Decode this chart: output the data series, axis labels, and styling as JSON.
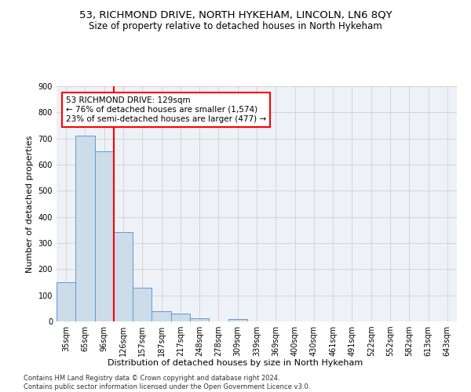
{
  "title": "53, RICHMOND DRIVE, NORTH HYKEHAM, LINCOLN, LN6 8QY",
  "subtitle": "Size of property relative to detached houses in North Hykeham",
  "xlabel": "Distribution of detached houses by size in North Hykeham",
  "ylabel": "Number of detached properties",
  "footer_line1": "Contains HM Land Registry data © Crown copyright and database right 2024.",
  "footer_line2": "Contains public sector information licensed under the Open Government Licence v3.0.",
  "categories": [
    "35sqm",
    "65sqm",
    "96sqm",
    "126sqm",
    "157sqm",
    "187sqm",
    "217sqm",
    "248sqm",
    "278sqm",
    "309sqm",
    "339sqm",
    "369sqm",
    "400sqm",
    "430sqm",
    "461sqm",
    "491sqm",
    "522sqm",
    "552sqm",
    "582sqm",
    "613sqm",
    "643sqm"
  ],
  "values": [
    150,
    711,
    652,
    342,
    128,
    40,
    30,
    12,
    0,
    10,
    0,
    0,
    0,
    0,
    0,
    0,
    0,
    0,
    0,
    0,
    0
  ],
  "bar_color": "#ccdce8",
  "bar_edge_color": "#5b9bd5",
  "ylim": [
    0,
    900
  ],
  "yticks": [
    0,
    100,
    200,
    300,
    400,
    500,
    600,
    700,
    800,
    900
  ],
  "annotation_line1": "53 RICHMOND DRIVE: 129sqm",
  "annotation_line2": "← 76% of detached houses are smaller (1,574)",
  "annotation_line3": "23% of semi-detached houses are larger (477) →",
  "red_line_bin": 2.5,
  "background_color": "#eef2f7",
  "grid_color": "#c8c8c8",
  "title_fontsize": 9.5,
  "subtitle_fontsize": 8.5,
  "axis_label_fontsize": 8,
  "tick_fontsize": 7,
  "annotation_fontsize": 7.5,
  "footer_fontsize": 6
}
